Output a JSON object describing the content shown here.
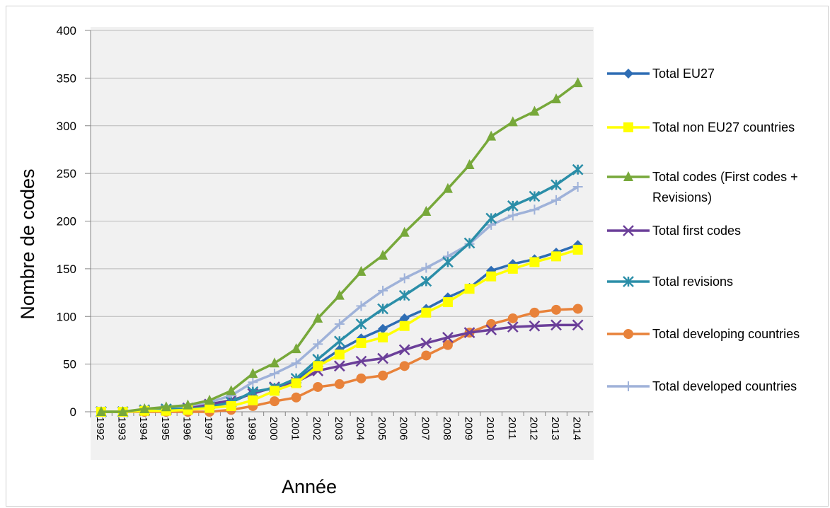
{
  "chart_data": {
    "type": "line",
    "xlabel": "Année",
    "ylabel": "Nombre de codes",
    "ylim": [
      0,
      400
    ],
    "yticks": [
      0,
      50,
      100,
      150,
      200,
      250,
      300,
      350,
      400
    ],
    "grid": true,
    "legend_position": "right",
    "categories": [
      "1992",
      "1993",
      "1994",
      "1995",
      "1996",
      "1997",
      "1998",
      "1999",
      "2000",
      "2001",
      "2002",
      "2003",
      "2004",
      "2005",
      "2006",
      "2007",
      "2008",
      "2009",
      "2010",
      "2011",
      "2012",
      "2013",
      "2014"
    ],
    "series": [
      {
        "name": "Total EU27",
        "color": "#2e6db4",
        "marker": "diamond",
        "values": [
          0,
          0,
          1,
          2,
          4,
          7,
          10,
          20,
          25,
          33,
          50,
          65,
          77,
          87,
          98,
          108,
          120,
          130,
          148,
          155,
          160,
          167,
          175
        ]
      },
      {
        "name": "Total non EU27 countries",
        "color": "#ffff00",
        "marker": "square",
        "values": [
          0,
          0,
          1,
          1,
          2,
          4,
          6,
          12,
          22,
          30,
          48,
          60,
          72,
          78,
          90,
          104,
          115,
          129,
          142,
          150,
          157,
          163,
          170
        ]
      },
      {
        "name": "Total codes (First codes + Revisions)",
        "color": "#77a83a",
        "marker": "triangle",
        "values": [
          0,
          0,
          3,
          5,
          7,
          12,
          22,
          40,
          51,
          66,
          98,
          122,
          147,
          164,
          188,
          210,
          234,
          259,
          289,
          304,
          315,
          328,
          345
        ]
      },
      {
        "name": "Total first codes",
        "color": "#6b3f99",
        "marker": "x",
        "values": [
          0,
          0,
          1,
          2,
          4,
          8,
          12,
          19,
          26,
          31,
          43,
          48,
          53,
          56,
          65,
          72,
          78,
          83,
          86,
          89,
          90,
          91,
          91
        ]
      },
      {
        "name": "Total revisions",
        "color": "#2b8ea8",
        "marker": "star",
        "values": [
          0,
          0,
          2,
          3,
          3,
          5,
          10,
          21,
          25,
          35,
          55,
          74,
          92,
          108,
          122,
          137,
          157,
          177,
          203,
          216,
          226,
          238,
          254
        ]
      },
      {
        "name": "Total developing countries",
        "color": "#e8823a",
        "marker": "circle",
        "values": [
          0,
          0,
          0,
          0,
          0,
          0,
          2,
          6,
          11,
          15,
          26,
          29,
          35,
          38,
          48,
          59,
          70,
          83,
          92,
          98,
          104,
          107,
          108
        ]
      },
      {
        "name": "Total developed countries",
        "color": "#9fb2d9",
        "marker": "plus",
        "values": [
          0,
          0,
          1,
          4,
          6,
          10,
          17,
          31,
          40,
          51,
          71,
          92,
          111,
          127,
          140,
          151,
          163,
          176,
          196,
          206,
          212,
          222,
          236
        ]
      }
    ],
    "legend_lines": [
      [
        "Total EU27"
      ],
      [
        "Total non EU27 countries"
      ],
      [
        "Total codes (First codes +",
        "Revisions)"
      ],
      [
        "Total first codes"
      ],
      [
        "Total revisions"
      ],
      [
        "Total developing countries"
      ],
      [
        "Total developed countries"
      ]
    ]
  }
}
